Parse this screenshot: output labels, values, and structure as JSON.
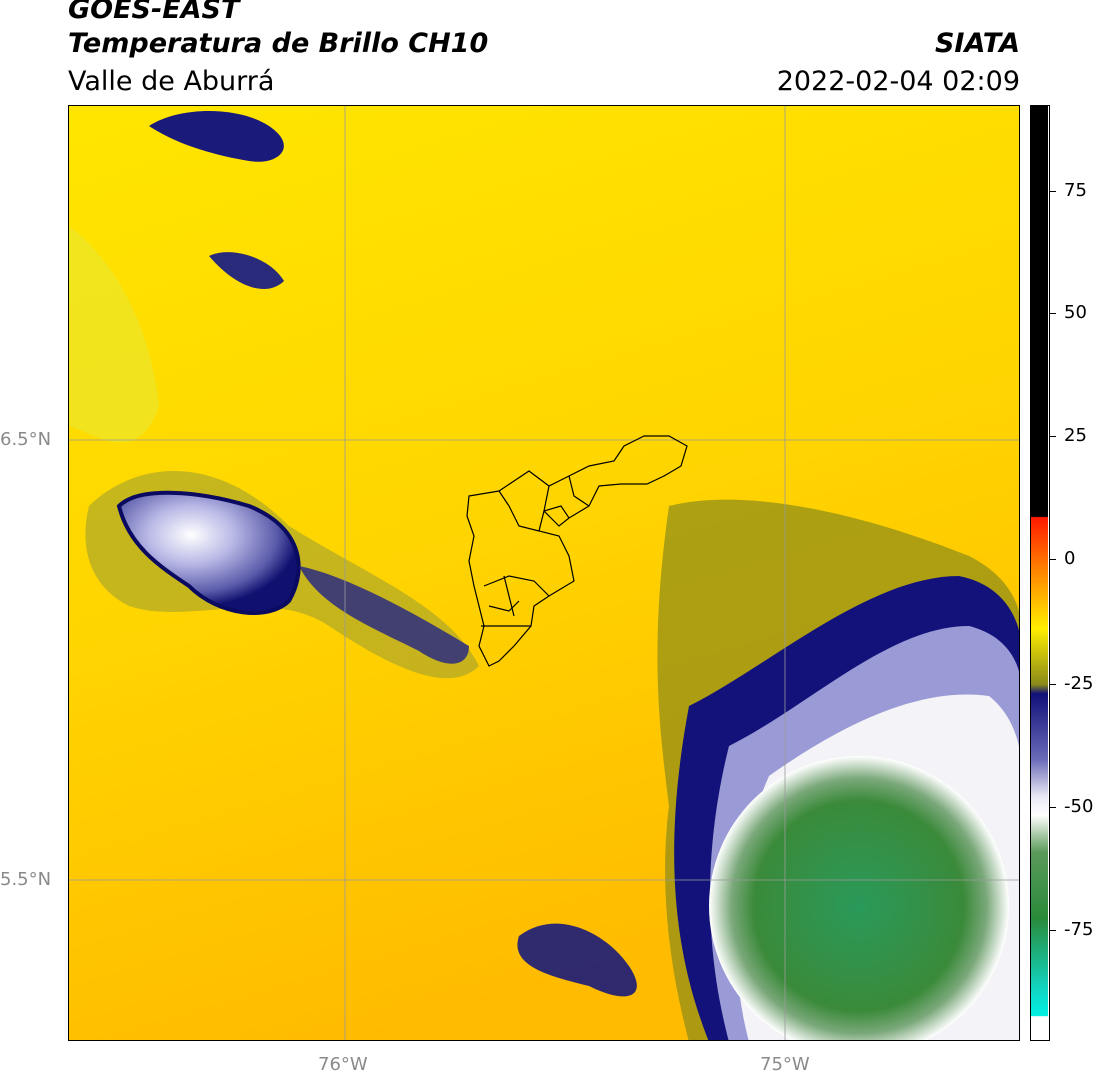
{
  "header": {
    "satellite": "GOES-EAST",
    "product": "Temperatura de Brillo CH10",
    "region": "Valle de Aburrá",
    "organization": "SIATA",
    "datetime": "2022-02-04 02:09"
  },
  "map": {
    "lat_labels": [
      "6.5°N",
      "5.5°N"
    ],
    "lon_labels": [
      "76°W",
      "75°W"
    ]
  },
  "colorbar": {
    "ticks": [
      "75",
      "50",
      "25",
      "0",
      "-25",
      "-50",
      "-75"
    ],
    "tick_values": [
      75,
      50,
      25,
      0,
      -25,
      -50,
      -75
    ],
    "colors": {
      "hot_black": "#000000",
      "red": "#ff0000",
      "orange": "#ff9900",
      "yellow": "#ffff00",
      "olive": "#8a8a1a",
      "navy": "#0a0a7a",
      "lavender": "#9a9ad6",
      "white": "#ffffff",
      "green": "#2a8a2a",
      "cyan": "#00e0d0"
    }
  }
}
